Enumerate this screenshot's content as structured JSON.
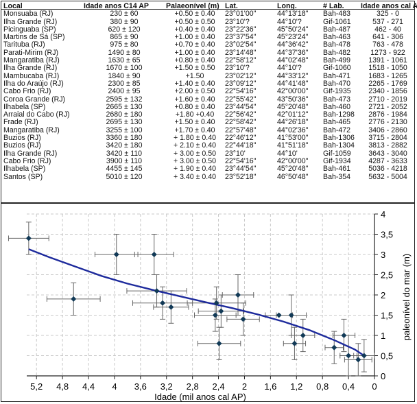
{
  "table": {
    "headers": [
      "Local",
      "Idade anos C14 AP",
      "Palaeonível (m)",
      "Lat.",
      "Long.",
      "# Lab.",
      "Idade anos cal AP"
    ],
    "rows": [
      [
        "Monsuaba (RJ)",
        "230 ± 60",
        "+0.50 ± 0.40",
        "23°01'00\"",
        "44°13'18\"",
        "Bah-483",
        "325 - 0"
      ],
      [
        "Ilha Grande (RJ)",
        "380 ± 90",
        "+0.50 ± 0.50",
        "23°10'?",
        "44°10'?",
        "Gif-1061",
        "537 - 271"
      ],
      [
        "Picinguaba (SP)",
        "620 ± 120",
        "+0.40 ± 0.40",
        "23°22'36\"",
        "45°50'24\"",
        "Bah-487",
        "462 - 40"
      ],
      [
        "Martins de Sá (SP)",
        "865 ± 90",
        "+1.00 ± 0.40",
        "23°37'54\"",
        "45°23'24\"",
        "Bah-463",
        "641 - 306"
      ],
      [
        "Tarituba (RJ)",
        "975 ± 80",
        "+0.70 ± 0.40",
        "23°02'54\"",
        "44°36'42\"",
        "Bah-478",
        "763 - 478"
      ],
      [
        "Parati-Mirim (RJ)",
        "1490 ± 80",
        "+1.00 ± 0.40",
        "23°14'48\"",
        "44°37'36\"",
        "Bah-482",
        "1273 - 922"
      ],
      [
        "Mangaratiba (RJ)",
        "1630 ± 65",
        "+0.80 ± 0.40",
        "22°58'12\"",
        "44°02'48\"",
        "Bah-499",
        "1391 - 1061"
      ],
      [
        "Ilha Grande (RJ)",
        "1670 ± 100",
        "+1.50 ± 0.50",
        "23°10'?",
        "44°10'?",
        "Gif-1060",
        "1518 - 1050"
      ],
      [
        "Mambucaba (RJ)",
        "1840 ± 90",
        "+1.50",
        "23°02'12\"",
        "44°33'12\"",
        "Bah-471",
        "1683 - 1265"
      ],
      [
        "Ilha do Araújo (RJ)",
        "2300 ± 85",
        "+1.40 ± 0.40",
        "23°09'12\"",
        "44°41'48\"",
        "Bah-470",
        "2265 - 1769"
      ],
      [
        "Cabo Frio (RJ)",
        "2400 ± 95",
        "+2.00 ± 0.50",
        "22°54'16\"",
        "42°00'00\"",
        "Gif-1935",
        "2340 - 1856"
      ],
      [
        "Coroa Grande (RJ)",
        "2595 ± 132",
        "+1.60 ± 0.40",
        "22°55'42\"",
        "43°50'36\"",
        "Bah-473",
        "2710 - 2019"
      ],
      [
        "Ilhabela (SP)",
        "2665 ± 130",
        "+0.80 ± 0.40",
        "23°44'54\"",
        "45°20'48\"",
        "Bah-460",
        "2721 - 2052"
      ],
      [
        "Arraial do Cabo (RJ)",
        "2680 ± 180",
        "+1.80 +0.40",
        "22°56'42\"",
        "42°01'12\"",
        "Bah-1298",
        "2876 - 1984"
      ],
      [
        "Frade (RJ)",
        "2695 ± 130",
        "+1.50 ± 0.40",
        "22°58'42\"",
        "44°26'18\"",
        "Bah-465",
        "2776 - 2130"
      ],
      [
        "Mangaratiba (RJ)",
        "3255 ± 100",
        "+1.70 ± 0.40",
        "22°57'48\"",
        "44°02'36\"",
        "Bah-472",
        "3406 - 2860"
      ],
      [
        "Buzios (RJ)",
        "3360 ± 180",
        "+ 1.80 ± 0.40",
        "22°46'12\"",
        "41°53'00\"",
        "Bah-1306",
        "3715 - 2804"
      ],
      [
        "Buzios (RJ)",
        "3420 ± 180",
        "+ 2.10 ± 0.40",
        "22°44'18\"",
        "41°51'18\"",
        "Bah-1304",
        "3813 - 2882"
      ],
      [
        "Ilha Grande (RJ)",
        "3420 ± 110",
        "+ 3.00 ± 0.50",
        "23°10'",
        "44°10'",
        "Gif-1059",
        "3643 - 3040"
      ],
      [
        "Cabo Frio (RJ)",
        "3900 ± 110",
        "+ 3.00 ± 0.50",
        "22°54'16\"",
        "42°00'00\"",
        "Gif-1934",
        "4287 - 3633"
      ],
      [
        "Ilhabela (SP)",
        "4455 ± 145",
        "+ 1.90 ± 0.40",
        "23°44'54\"",
        "45°20'48\"",
        "Bah-461",
        "5036 - 4218"
      ],
      [
        "Santos (SP)",
        "5010 ± 120",
        "+ 3.40 ± 0.40",
        "23°52'18\"",
        "46°50'48\"",
        "Bah-354",
        "5632 - 5004"
      ]
    ]
  },
  "chart_data": {
    "type": "scatter",
    "xlabel": "Idade (mil anos cal AP)",
    "ylabel": "paleonível do mar (m)",
    "xlim": [
      5.35,
      0
    ],
    "ylim": [
      0,
      4
    ],
    "x_ticks": [
      "5,2",
      "4,8",
      "4,4",
      "4",
      "3,6",
      "3,2",
      "2,8",
      "2,4",
      "2",
      "1,6",
      "1,2",
      "0,8",
      "0,4",
      "0"
    ],
    "x_tick_values": [
      5.2,
      4.8,
      4.4,
      4.0,
      3.6,
      3.2,
      2.8,
      2.4,
      2.0,
      1.6,
      1.2,
      0.8,
      0.4,
      0.0
    ],
    "y_ticks": [
      "0",
      "0,5",
      "1",
      "1,5",
      "2",
      "2,5",
      "3",
      "3,5",
      "4"
    ],
    "y_tick_values": [
      0,
      0.5,
      1,
      1.5,
      2,
      2.5,
      3,
      3.5,
      4
    ],
    "grid": true,
    "colors": {
      "points": "#123a57",
      "trend": "#1d2a9c",
      "errorbars": "#666666",
      "grid": "#c8c8c8"
    },
    "points": [
      {
        "x": 5.32,
        "y": 3.4,
        "xerr": 0.31,
        "yerr": 0.4
      },
      {
        "x": 4.63,
        "y": 1.9,
        "xerr": 0.41,
        "yerr": 0.4
      },
      {
        "x": 3.97,
        "y": 3.0,
        "xerr": 0.33,
        "yerr": 0.5
      },
      {
        "x": 3.39,
        "y": 3.0,
        "xerr": 0.3,
        "yerr": 0.5
      },
      {
        "x": 3.35,
        "y": 2.1,
        "xerr": 0.46,
        "yerr": 0.4
      },
      {
        "x": 3.26,
        "y": 1.8,
        "xerr": 0.46,
        "yerr": 0.4
      },
      {
        "x": 3.13,
        "y": 1.7,
        "xerr": 0.27,
        "yerr": 0.4
      },
      {
        "x": 2.45,
        "y": 1.5,
        "xerr": 0.32,
        "yerr": 0.4
      },
      {
        "x": 2.43,
        "y": 1.8,
        "xerr": 0.45,
        "yerr": 0.4
      },
      {
        "x": 2.39,
        "y": 0.8,
        "xerr": 0.33,
        "yerr": 0.4
      },
      {
        "x": 2.36,
        "y": 1.6,
        "xerr": 0.35,
        "yerr": 0.4
      },
      {
        "x": 2.1,
        "y": 2.0,
        "xerr": 0.24,
        "yerr": 0.5
      },
      {
        "x": 2.02,
        "y": 1.4,
        "xerr": 0.25,
        "yerr": 0.4
      },
      {
        "x": 1.47,
        "y": 1.5,
        "xerr": 0.21,
        "yerr": 0.0
      },
      {
        "x": 1.28,
        "y": 1.5,
        "xerr": 0.23,
        "yerr": 0.5
      },
      {
        "x": 1.23,
        "y": 0.8,
        "xerr": 0.17,
        "yerr": 0.4
      },
      {
        "x": 1.1,
        "y": 1.0,
        "xerr": 0.18,
        "yerr": 0.4
      },
      {
        "x": 0.62,
        "y": 0.7,
        "xerr": 0.14,
        "yerr": 0.4
      },
      {
        "x": 0.47,
        "y": 1.0,
        "xerr": 0.17,
        "yerr": 0.4
      },
      {
        "x": 0.4,
        "y": 0.5,
        "xerr": 0.13,
        "yerr": 0.5
      },
      {
        "x": 0.25,
        "y": 0.4,
        "xerr": 0.21,
        "yerr": 0.4
      },
      {
        "x": 0.16,
        "y": 0.5,
        "xerr": 0.16,
        "yerr": 0.4
      }
    ],
    "trend_line": {
      "x": [
        5.32,
        5.0,
        4.6,
        4.2,
        3.8,
        3.4,
        3.0,
        2.6,
        2.2,
        1.8,
        1.4,
        1.0,
        0.6,
        0.3,
        0.16
      ],
      "y": [
        3.13,
        2.93,
        2.7,
        2.47,
        2.28,
        2.12,
        1.97,
        1.82,
        1.68,
        1.52,
        1.34,
        1.13,
        0.87,
        0.65,
        0.5
      ]
    }
  }
}
